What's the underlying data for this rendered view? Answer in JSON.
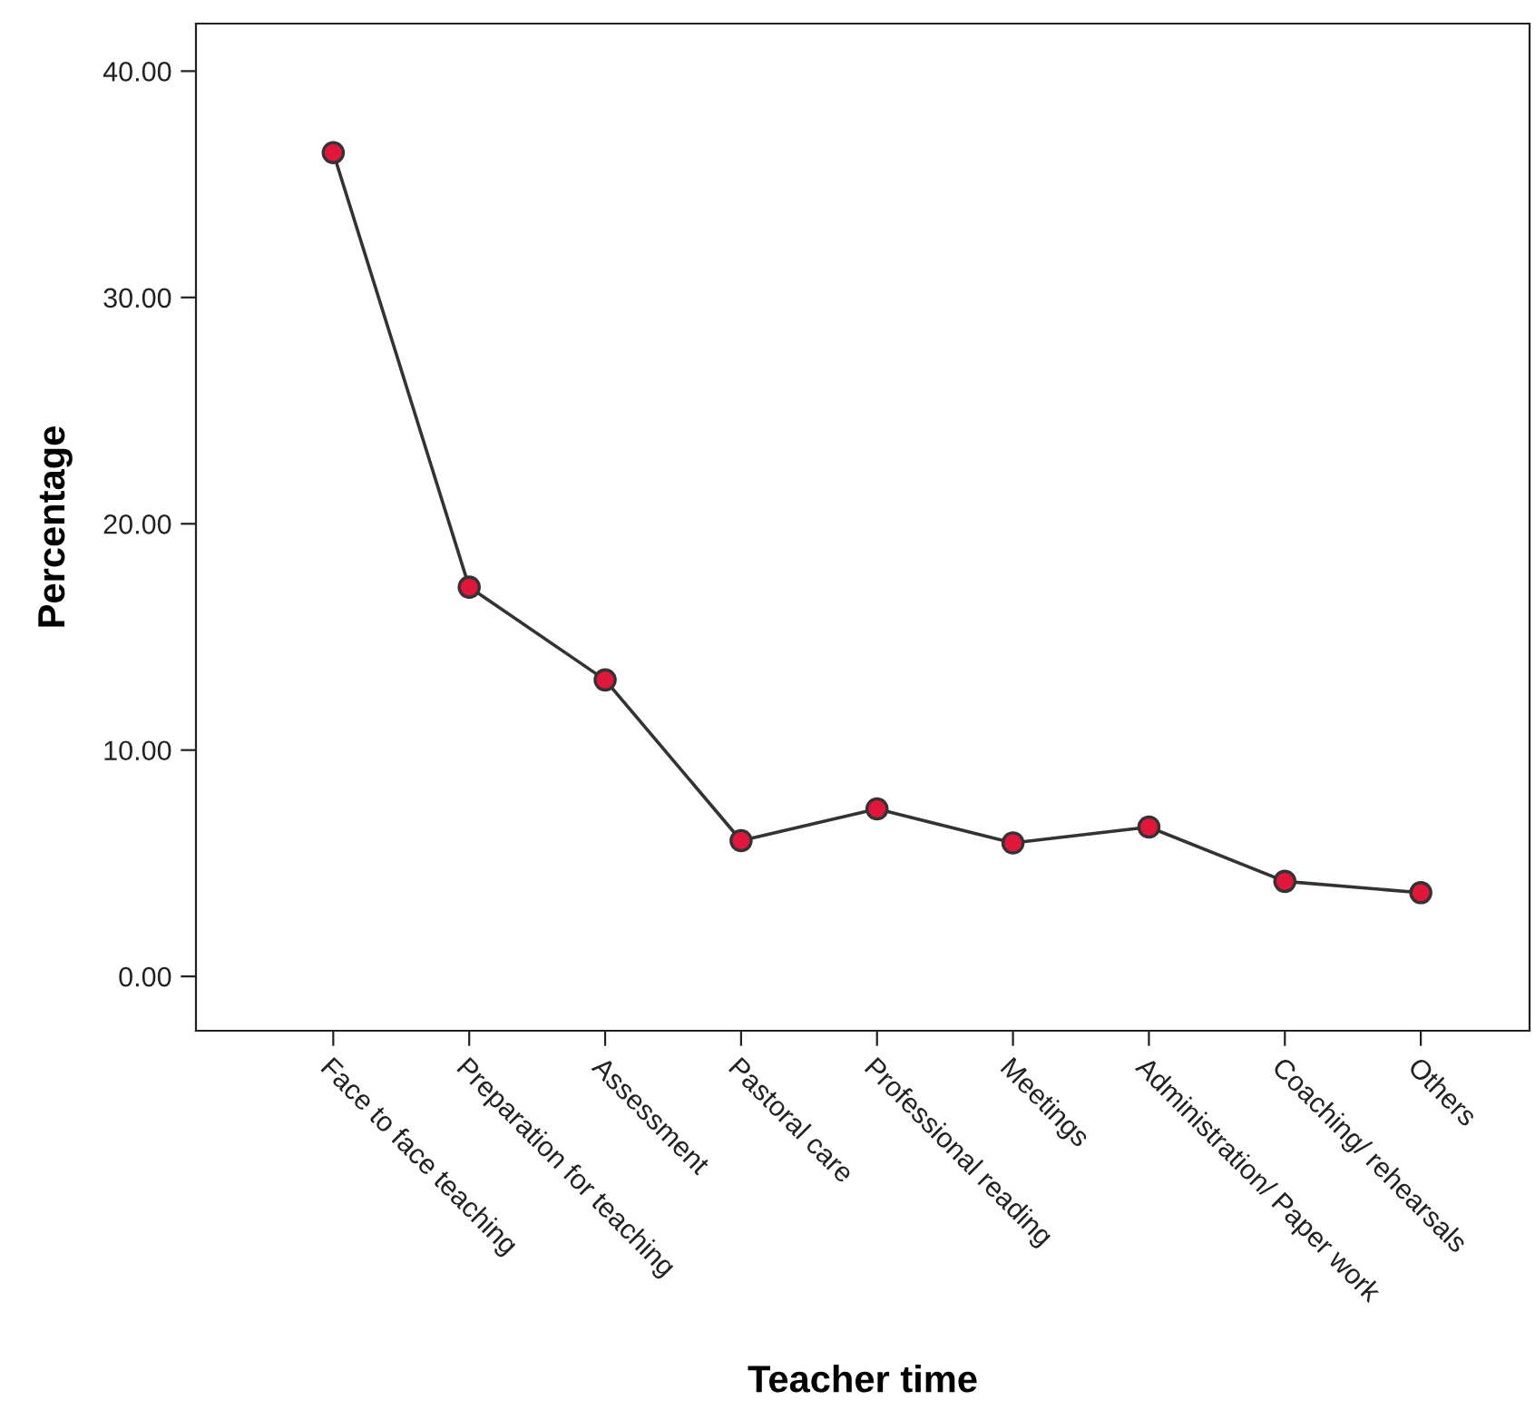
{
  "chart_data": {
    "type": "line",
    "xlabel": "Teacher time",
    "ylabel": "Percentage",
    "categories": [
      "Face to face teaching",
      "Preparation for teaching",
      "Assessment",
      "Pastoral care",
      "Professional reading",
      "Meetings",
      "Administration/ Paper work",
      "Coaching/ rehearsals",
      "Others"
    ],
    "series": [
      {
        "color": "#e0173a",
        "values": [
          36.4,
          17.2,
          13.1,
          6.0,
          7.4,
          5.9,
          6.6,
          4.2,
          3.7
        ]
      }
    ],
    "ylim": [
      -2.4,
      42.1
    ],
    "yticks": [
      {
        "value": 0,
        "label": "0.00"
      },
      {
        "value": 10,
        "label": "10.00"
      },
      {
        "value": 20,
        "label": "20.00"
      },
      {
        "value": 30,
        "label": "30.00"
      },
      {
        "value": 40,
        "label": "40.00"
      }
    ],
    "marker": "circle",
    "line_style": "solid",
    "grid": false,
    "legend": false
  }
}
